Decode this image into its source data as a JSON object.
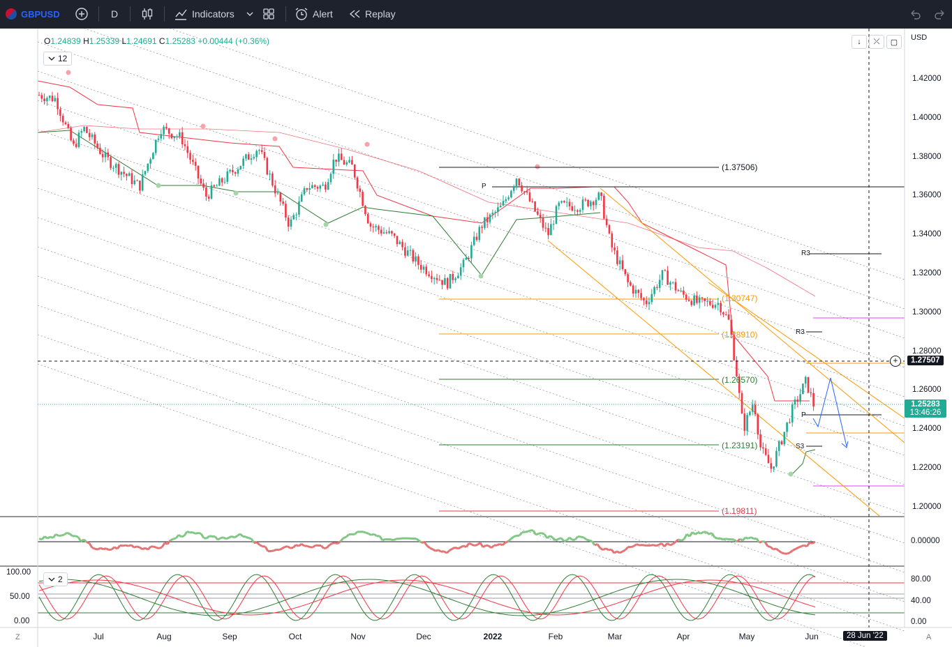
{
  "toolbar": {
    "symbol": "GBPUSD",
    "interval": "D",
    "indicators_label": "Indicators",
    "alert_label": "Alert",
    "replay_label": "Replay"
  },
  "legend": {
    "o_label": "O",
    "o": "1.24839",
    "h_label": "H",
    "h": "1.25339",
    "l_label": "L",
    "l": "1.24691",
    "c_label": "C",
    "c": "1.25283",
    "change": "+0.00444 (+0.36%)",
    "collapse_count": "12",
    "stoch_count": "2"
  },
  "currency": "USD",
  "price_axis": [
    "1.42000",
    "1.40000",
    "1.38000",
    "1.36000",
    "1.34000",
    "1.32000",
    "1.30000",
    "1.28000",
    "1.26000",
    "1.24000",
    "1.22000",
    "1.20000"
  ],
  "crosshair_price": "1.27507",
  "last_price": "1.25283",
  "countdown": "13:46:26",
  "osc_axis": [
    "0.00000"
  ],
  "stoch_axis_right": [
    "80.00",
    "40.00",
    "0.00"
  ],
  "stoch_axis_left": [
    "100.00",
    "50.00",
    "0.00"
  ],
  "time_axis": [
    "Jul",
    "Aug",
    "Sep",
    "Oct",
    "Nov",
    "Dec",
    "2022",
    "Feb",
    "Mar",
    "Apr",
    "May",
    "Jun"
  ],
  "crosshair_date": "28 Jun '22",
  "corners": {
    "left": "Z",
    "right": "A"
  },
  "levels": {
    "l1": "(1.37506)",
    "l2": "(1.30747)",
    "l3": "(1.28910)",
    "l4": "(1.26570)",
    "l5": "(1.23191)",
    "l6": "(1.19811)",
    "p1": "P",
    "p2": "P",
    "r3a": "R3",
    "r3b": "R3",
    "s3": "S3"
  },
  "colors": {
    "up": "#22ab94",
    "down": "#f23645",
    "accent": "#2962ff",
    "fib": "#ff9800"
  }
}
